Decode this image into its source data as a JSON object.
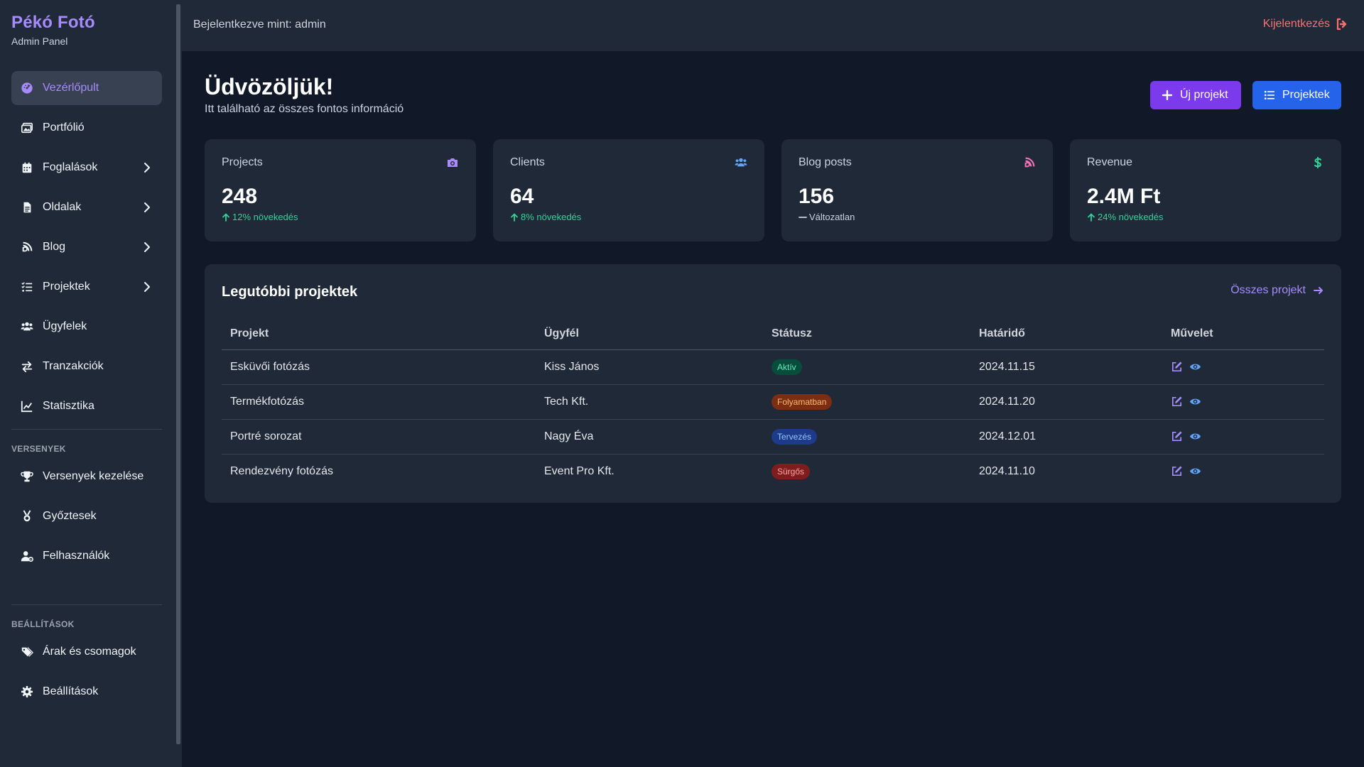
{
  "sidebar": {
    "brand_name": "Pékó Fotó",
    "brand_sub": "Admin Panel",
    "items": [
      {
        "label": "Vezérlőpult",
        "icon": "dashboard-icon",
        "active": true,
        "expandable": false
      },
      {
        "label": "Portfólió",
        "icon": "images-icon",
        "active": false,
        "expandable": false
      },
      {
        "label": "Foglalások",
        "icon": "calendar-icon",
        "active": false,
        "expandable": true
      },
      {
        "label": "Oldalak",
        "icon": "file-icon",
        "active": false,
        "expandable": true
      },
      {
        "label": "Blog",
        "icon": "blog-icon",
        "active": false,
        "expandable": true
      },
      {
        "label": "Projektek",
        "icon": "tasks-icon",
        "active": false,
        "expandable": true
      },
      {
        "label": "Ügyfelek",
        "icon": "users-icon",
        "active": false,
        "expandable": false
      },
      {
        "label": "Tranzakciók",
        "icon": "exchange-icon",
        "active": false,
        "expandable": false
      },
      {
        "label": "Statisztika",
        "icon": "chart-line-icon",
        "active": false,
        "expandable": false
      }
    ],
    "section_competitions": "VERSENYEK",
    "competition_items": [
      {
        "label": "Versenyek kezelése",
        "icon": "trophy-icon"
      },
      {
        "label": "Győztesek",
        "icon": "medal-icon"
      },
      {
        "label": "Felhasználók",
        "icon": "user-cog-icon"
      }
    ],
    "section_settings": "BEÁLLÍTÁSOK",
    "settings_items": [
      {
        "label": "Árak és csomagok",
        "icon": "tags-icon"
      },
      {
        "label": "Beállítások",
        "icon": "gear-icon"
      }
    ]
  },
  "topbar": {
    "logged_in": "Bejelentkezve mint: admin",
    "logout": "Kijelentkezés"
  },
  "header": {
    "title": "Üdvözöljük!",
    "subtitle": "Itt található az összes fontos információ",
    "new_project": "Új projekt",
    "projects": "Projektek"
  },
  "stats": [
    {
      "label": "Projects",
      "value": "248",
      "delta": "12% növekedés",
      "trend": "up",
      "icon": "camera-icon",
      "color": "#a78bfa"
    },
    {
      "label": "Clients",
      "value": "64",
      "delta": "8% növekedés",
      "trend": "up",
      "icon": "users-icon",
      "color": "#60a5fa"
    },
    {
      "label": "Blog posts",
      "value": "156",
      "delta": "Változatlan",
      "trend": "flat",
      "icon": "blog-icon",
      "color": "#f472b6"
    },
    {
      "label": "Revenue",
      "value": "2.4M Ft",
      "delta": "24% növekedés",
      "trend": "up",
      "icon": "dollar-icon",
      "color": "#34d399"
    }
  ],
  "recent": {
    "title": "Legutóbbi projektek",
    "all_link": "Összes projekt",
    "columns": [
      "Projekt",
      "Ügyfél",
      "Státusz",
      "Határidő",
      "Művelet"
    ],
    "rows": [
      {
        "project": "Esküvői fotózás",
        "client": "Kiss János",
        "status": "Aktív",
        "status_bg": "#064e3b",
        "status_fg": "#6ee7b7",
        "deadline": "2024.11.15"
      },
      {
        "project": "Termékfotózás",
        "client": "Tech Kft.",
        "status": "Folyamatban",
        "status_bg": "#7c2d12",
        "status_fg": "#fdba74",
        "deadline": "2024.11.20"
      },
      {
        "project": "Portré sorozat",
        "client": "Nagy Éva",
        "status": "Tervezés",
        "status_bg": "#1e3a8a",
        "status_fg": "#93c5fd",
        "deadline": "2024.12.01"
      },
      {
        "project": "Rendezvény fotózás",
        "client": "Event Pro Kft.",
        "status": "Sürgős",
        "status_bg": "#7f1d1d",
        "status_fg": "#fca5a5",
        "deadline": "2024.11.10"
      }
    ]
  },
  "colors": {
    "accent_purple": "#7c3aed",
    "accent_blue": "#2563eb",
    "logout_red": "#f87171",
    "edit_icon": "#a78bfa",
    "view_icon": "#60a5fa"
  }
}
